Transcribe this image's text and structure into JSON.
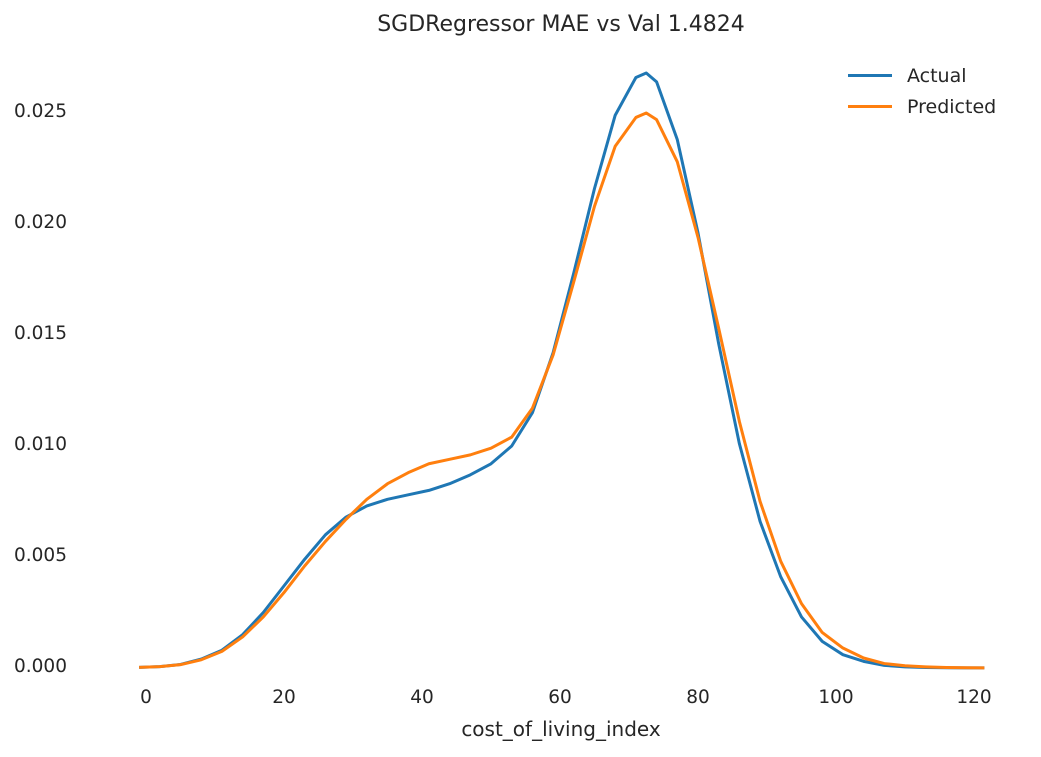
{
  "chart_data": {
    "type": "line",
    "title": "SGDRegressor MAE vs Val 1.4824",
    "xlabel": "cost_of_living_index",
    "ylabel": "",
    "xlim": [
      -2,
      122
    ],
    "ylim": [
      0,
      0.026
    ],
    "xticks": [
      "0",
      "20",
      "40",
      "60",
      "80",
      "100",
      "120"
    ],
    "yticks": [
      "0.000",
      "0.005",
      "0.010",
      "0.015",
      "0.020",
      "0.025"
    ],
    "grid": false,
    "legend_position": "top-right",
    "x": [
      -1,
      2,
      5,
      8,
      11,
      14,
      17,
      20,
      23,
      26,
      29,
      32,
      35,
      38,
      41,
      44,
      47,
      50,
      53,
      56,
      59,
      62,
      65,
      68,
      71,
      72.5,
      74,
      77,
      80,
      83,
      86,
      89,
      92,
      95,
      98,
      101,
      104,
      107,
      110,
      113,
      116,
      119,
      121.5
    ],
    "series": [
      {
        "name": "Actual",
        "color": "#1f77b4",
        "values": [
          3e-05,
          6e-05,
          0.00016,
          0.0004,
          0.0008,
          0.0015,
          0.0025,
          0.0037,
          0.0049,
          0.006,
          0.0068,
          0.0073,
          0.0076,
          0.0078,
          0.008,
          0.0083,
          0.0087,
          0.0092,
          0.01,
          0.0115,
          0.0142,
          0.0178,
          0.0216,
          0.0249,
          0.0266,
          0.0268,
          0.0264,
          0.0238,
          0.0196,
          0.0146,
          0.0101,
          0.0066,
          0.0041,
          0.0023,
          0.0012,
          0.0006,
          0.0003,
          0.00012,
          5e-05,
          2e-05,
          1e-05,
          5e-06,
          3e-06
        ]
      },
      {
        "name": "Predicted",
        "color": "#ff7f0e",
        "values": [
          3e-05,
          6e-05,
          0.00015,
          0.00037,
          0.00075,
          0.0014,
          0.0023,
          0.0034,
          0.0046,
          0.0057,
          0.0067,
          0.0076,
          0.0083,
          0.0088,
          0.0092,
          0.0094,
          0.0096,
          0.0099,
          0.0104,
          0.0117,
          0.0141,
          0.0174,
          0.0208,
          0.0235,
          0.0248,
          0.025,
          0.0247,
          0.0228,
          0.0194,
          0.0153,
          0.0111,
          0.0075,
          0.0048,
          0.0029,
          0.0016,
          0.0009,
          0.00045,
          0.0002,
          0.0001,
          5e-05,
          2e-05,
          1e-05,
          5e-06
        ]
      }
    ]
  }
}
